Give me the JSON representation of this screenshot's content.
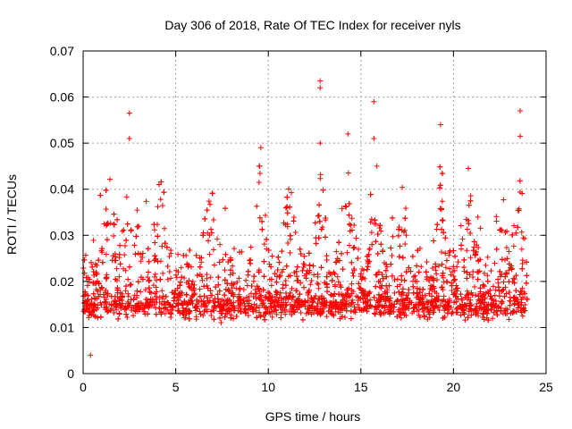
{
  "chart_data": {
    "type": "scatter",
    "title": "Day 306 of 2018, Rate Of TEC Index for receiver nyls",
    "xlabel": "GPS time / hours",
    "ylabel": "ROTI / TECUs",
    "xlim": [
      0,
      25
    ],
    "ylim": [
      0,
      0.07
    ],
    "xticks": [
      0,
      5,
      10,
      15,
      20,
      25
    ],
    "yticks": [
      0,
      0.01,
      0.02,
      0.03,
      0.04,
      0.05,
      0.06,
      0.07
    ],
    "xtick_labels": [
      "0",
      "5",
      "10",
      "15",
      "20",
      "25"
    ],
    "ytick_labels": [
      "0",
      "0.01",
      "0.02",
      "0.03",
      "0.04",
      "0.05",
      "0.06",
      "0.07"
    ],
    "grid": true,
    "marker": "+",
    "color": "#ff0000",
    "data_extent_x": [
      0,
      24
    ],
    "notable_points": [
      {
        "x": 0.4,
        "y": 0.004
      },
      {
        "x": 2.5,
        "y": 0.0565
      },
      {
        "x": 2.5,
        "y": 0.051
      },
      {
        "x": 9.6,
        "y": 0.049
      },
      {
        "x": 12.8,
        "y": 0.0635
      },
      {
        "x": 12.8,
        "y": 0.062
      },
      {
        "x": 12.8,
        "y": 0.05
      },
      {
        "x": 14.3,
        "y": 0.052
      },
      {
        "x": 15.7,
        "y": 0.059
      },
      {
        "x": 15.7,
        "y": 0.051
      },
      {
        "x": 19.3,
        "y": 0.054
      },
      {
        "x": 20.8,
        "y": 0.0445
      },
      {
        "x": 23.6,
        "y": 0.057
      },
      {
        "x": 23.6,
        "y": 0.0515
      }
    ],
    "series_profile": {
      "name": "ROTI",
      "typical_band": [
        0.005,
        0.025
      ],
      "median_level": 0.014,
      "generated_point_count": 3500
    }
  }
}
